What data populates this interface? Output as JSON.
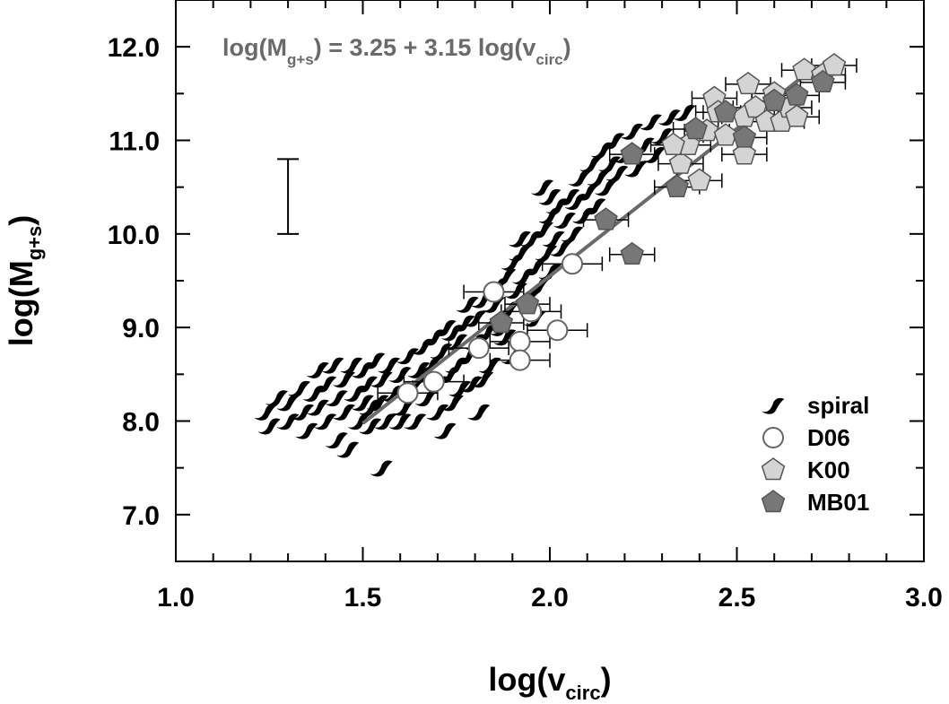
{
  "chart_data": {
    "type": "scatter",
    "xlabel_main": "log(v",
    "xlabel_sub": "circ",
    "xlabel_end": ")",
    "ylabel_main": "log(M",
    "ylabel_sub": "g+s",
    "ylabel_end": ")",
    "xlim": [
      1.0,
      3.0
    ],
    "ylim": [
      6.5,
      12.5
    ],
    "x_ticks": [
      1.0,
      1.5,
      2.0,
      2.5,
      3.0
    ],
    "x_tick_labels": [
      "1.0",
      "1.5",
      "2.0",
      "2.5",
      "3.0"
    ],
    "x_minor_step": 0.1,
    "y_ticks": [
      7.0,
      8.0,
      9.0,
      10.0,
      11.0,
      12.0
    ],
    "y_tick_labels": [
      "7.0",
      "8.0",
      "9.0",
      "10.0",
      "11.0",
      "12.0"
    ],
    "y_minor_step": 0.5,
    "grid": false,
    "legend_position": "bottom-right",
    "annotation": {
      "prefix": "log(M",
      "sub1": "g+s",
      "middle": ") = 3.25 + 3.15 log(v",
      "sub2": "circ",
      "suffix": ")"
    },
    "fit_line": {
      "intercept": 3.25,
      "slope": 3.15,
      "x_range": [
        1.5,
        2.7
      ],
      "color": "#6a6a6a"
    },
    "error_bar_example": {
      "x": 1.3,
      "y_low": 10.0,
      "y_high": 10.8
    },
    "series": [
      {
        "name": "spiral",
        "marker": "spiral",
        "color": "#000000",
        "points": [
          [
            1.24,
            8.1
          ],
          [
            1.27,
            8.25
          ],
          [
            1.25,
            7.95
          ],
          [
            1.3,
            8.2
          ],
          [
            1.3,
            8.0
          ],
          [
            1.33,
            8.35
          ],
          [
            1.34,
            8.1
          ],
          [
            1.35,
            7.9
          ],
          [
            1.37,
            8.3
          ],
          [
            1.38,
            8.15
          ],
          [
            1.38,
            8.55
          ],
          [
            1.4,
            8.0
          ],
          [
            1.4,
            8.4
          ],
          [
            1.42,
            8.6
          ],
          [
            1.43,
            8.25
          ],
          [
            1.43,
            7.8
          ],
          [
            1.45,
            8.45
          ],
          [
            1.45,
            8.1
          ],
          [
            1.46,
            7.7
          ],
          [
            1.47,
            8.6
          ],
          [
            1.48,
            8.3
          ],
          [
            1.49,
            8.0
          ],
          [
            1.5,
            8.55
          ],
          [
            1.5,
            8.2
          ],
          [
            1.51,
            8.4
          ],
          [
            1.52,
            7.95
          ],
          [
            1.53,
            8.65
          ],
          [
            1.54,
            8.2
          ],
          [
            1.55,
            8.45
          ],
          [
            1.56,
            8.0
          ],
          [
            1.57,
            8.6
          ],
          [
            1.58,
            8.3
          ],
          [
            1.55,
            7.5
          ],
          [
            1.6,
            8.5
          ],
          [
            1.61,
            8.15
          ],
          [
            1.62,
            8.7
          ],
          [
            1.63,
            8.35
          ],
          [
            1.64,
            8.0
          ],
          [
            1.65,
            8.55
          ],
          [
            1.66,
            8.8
          ],
          [
            1.67,
            8.25
          ],
          [
            1.68,
            8.6
          ],
          [
            1.69,
            8.9
          ],
          [
            1.7,
            8.4
          ],
          [
            1.7,
            8.1
          ],
          [
            1.71,
            8.75
          ],
          [
            1.72,
            9.0
          ],
          [
            1.73,
            8.5
          ],
          [
            1.74,
            8.2
          ],
          [
            1.75,
            8.85
          ],
          [
            1.75,
            8.6
          ],
          [
            1.76,
            8.35
          ],
          [
            1.77,
            9.05
          ],
          [
            1.78,
            8.7
          ],
          [
            1.79,
            8.4
          ],
          [
            1.8,
            9.1
          ],
          [
            1.8,
            8.85
          ],
          [
            1.81,
            8.1
          ],
          [
            1.82,
            9.3
          ],
          [
            1.83,
            8.95
          ],
          [
            1.84,
            8.6
          ],
          [
            1.85,
            9.25
          ],
          [
            1.86,
            9.45
          ],
          [
            1.87,
            9.0
          ],
          [
            1.88,
            9.55
          ],
          [
            1.89,
            9.2
          ],
          [
            1.9,
            9.7
          ],
          [
            1.9,
            8.7
          ],
          [
            1.91,
            9.4
          ],
          [
            1.92,
            9.8
          ],
          [
            1.93,
            9.55
          ],
          [
            1.94,
            9.3
          ],
          [
            1.95,
            9.95
          ],
          [
            1.96,
            9.65
          ],
          [
            1.97,
            9.45
          ],
          [
            1.98,
            10.05
          ],
          [
            1.99,
            9.8
          ],
          [
            2.0,
            10.2
          ],
          [
            2.0,
            9.6
          ],
          [
            2.01,
            9.95
          ],
          [
            2.02,
            10.3
          ],
          [
            2.03,
            9.85
          ],
          [
            2.04,
            10.15
          ],
          [
            2.05,
            10.4
          ],
          [
            2.06,
            10.0
          ],
          [
            2.07,
            10.35
          ],
          [
            2.08,
            10.6
          ],
          [
            2.09,
            10.2
          ],
          [
            2.1,
            10.45
          ],
          [
            2.11,
            10.75
          ],
          [
            2.12,
            10.3
          ],
          [
            2.13,
            10.6
          ],
          [
            2.14,
            10.9
          ],
          [
            2.15,
            10.5
          ],
          [
            2.16,
            10.75
          ],
          [
            2.17,
            11.0
          ],
          [
            2.18,
            10.65
          ],
          [
            2.2,
            10.85
          ],
          [
            2.22,
            11.1
          ],
          [
            2.23,
            10.7
          ],
          [
            2.25,
            10.95
          ],
          [
            2.27,
            11.2
          ],
          [
            2.28,
            10.85
          ],
          [
            2.3,
            11.05
          ],
          [
            2.32,
            11.25
          ],
          [
            2.34,
            10.95
          ],
          [
            2.36,
            11.3
          ],
          [
            2.38,
            11.1
          ],
          [
            2.0,
            10.4
          ],
          [
            1.98,
            10.5
          ],
          [
            1.92,
            9.95
          ],
          [
            1.78,
            9.25
          ],
          [
            1.74,
            8.95
          ],
          [
            1.66,
            8.5
          ],
          [
            1.88,
            8.9
          ],
          [
            1.96,
            9.1
          ],
          [
            1.82,
            8.45
          ],
          [
            1.72,
            7.9
          ],
          [
            1.6,
            8.0
          ],
          [
            1.52,
            8.15
          ]
        ]
      },
      {
        "name": "D06",
        "marker": "circle",
        "color": "#ffffff",
        "error": 0.08,
        "points": [
          [
            1.62,
            8.3
          ],
          [
            1.69,
            8.42
          ],
          [
            1.81,
            8.78
          ],
          [
            1.85,
            9.38
          ],
          [
            1.92,
            8.85
          ],
          [
            1.95,
            9.17
          ],
          [
            1.92,
            8.65
          ],
          [
            2.02,
            8.97
          ],
          [
            2.06,
            9.68
          ]
        ]
      },
      {
        "name": "K00",
        "marker": "pentagon",
        "color": "#d4d4d4",
        "error": 0.06,
        "points": [
          [
            2.35,
            10.75
          ],
          [
            2.37,
            10.95
          ],
          [
            2.4,
            10.57
          ],
          [
            2.42,
            11.1
          ],
          [
            2.44,
            11.45
          ],
          [
            2.45,
            11.3
          ],
          [
            2.47,
            11.05
          ],
          [
            2.52,
            11.25
          ],
          [
            2.53,
            11.6
          ],
          [
            2.55,
            11.35
          ],
          [
            2.52,
            10.85
          ],
          [
            2.58,
            11.2
          ],
          [
            2.6,
            11.5
          ],
          [
            2.62,
            11.2
          ],
          [
            2.64,
            11.35
          ],
          [
            2.66,
            11.25
          ],
          [
            2.68,
            11.75
          ],
          [
            2.73,
            11.7
          ],
          [
            2.76,
            11.8
          ],
          [
            2.33,
            10.95
          ]
        ]
      },
      {
        "name": "MB01",
        "marker": "pentagon",
        "color": "#777777",
        "error": 0.06,
        "points": [
          [
            2.22,
            10.85
          ],
          [
            2.15,
            10.15
          ],
          [
            2.22,
            9.78
          ],
          [
            2.34,
            10.5
          ],
          [
            2.39,
            11.12
          ],
          [
            2.47,
            11.3
          ],
          [
            2.52,
            11.03
          ],
          [
            2.6,
            11.42
          ],
          [
            2.66,
            11.48
          ],
          [
            2.73,
            11.62
          ],
          [
            1.87,
            9.05
          ],
          [
            1.94,
            9.25
          ]
        ]
      }
    ]
  }
}
